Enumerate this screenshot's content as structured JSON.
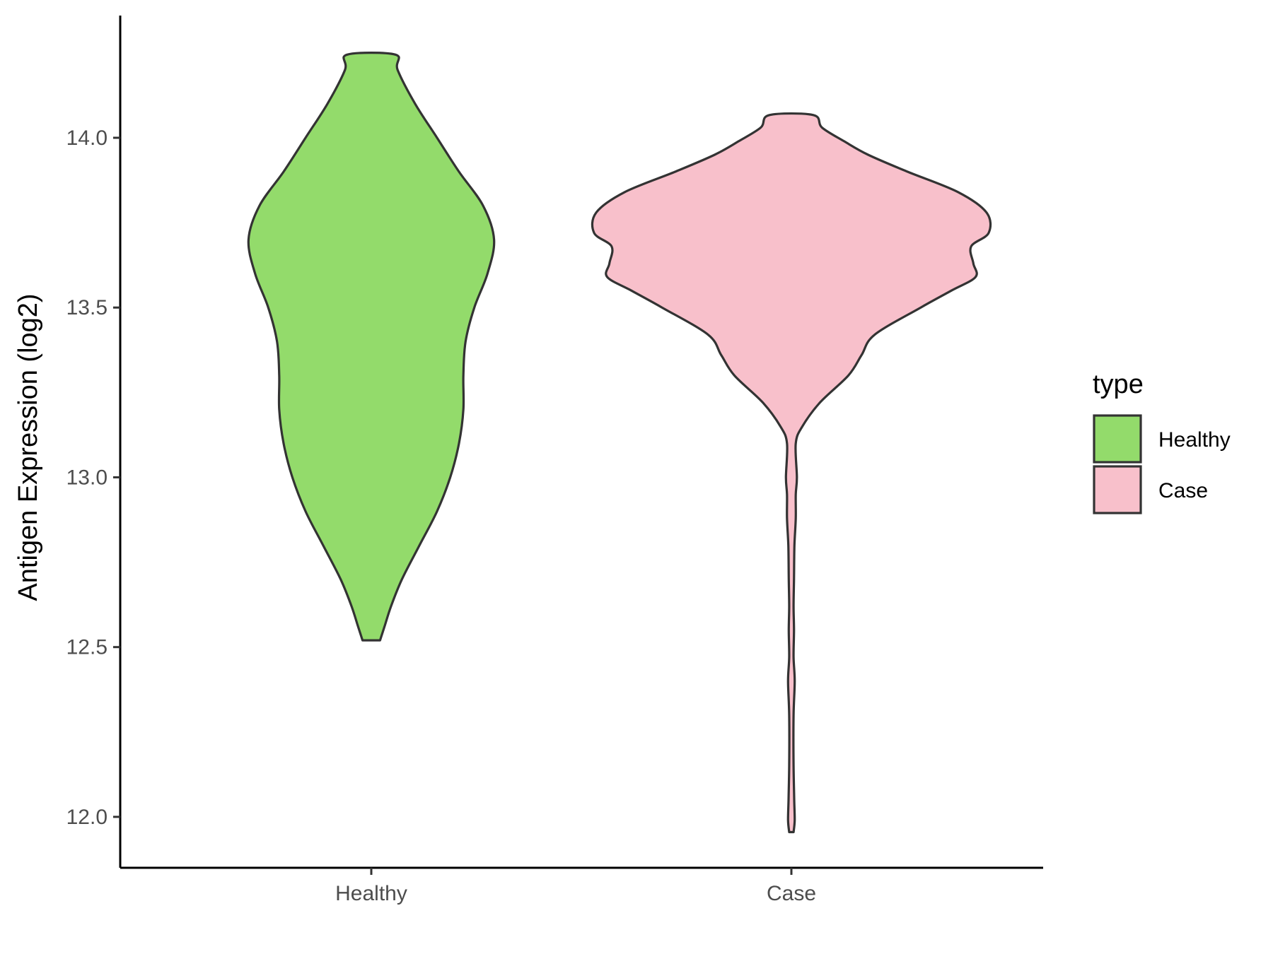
{
  "chart_data": {
    "type": "violin",
    "ylabel": "Antigen Expression (log2)",
    "xlabel": "",
    "ylim": [
      11.85,
      14.36
    ],
    "y_ticks": [
      12.0,
      12.5,
      13.0,
      13.5,
      14.0
    ],
    "y_tick_labels": [
      "12.0",
      "12.5",
      "13.0",
      "13.5",
      "14.0"
    ],
    "categories": [
      "Healthy",
      "Case"
    ],
    "grid": false,
    "legend": {
      "title": "type",
      "position": "right",
      "entries": [
        "Healthy",
        "Case"
      ]
    },
    "colors": {
      "Healthy": "#93db6b",
      "Case": "#f8c0cb",
      "outline": "#333333",
      "axis": "#000000"
    },
    "series": [
      {
        "name": "Healthy",
        "profile": [
          [
            12.52,
            0.04
          ],
          [
            12.56,
            0.06
          ],
          [
            12.62,
            0.09
          ],
          [
            12.7,
            0.14
          ],
          [
            12.8,
            0.22
          ],
          [
            12.9,
            0.3
          ],
          [
            13.0,
            0.36
          ],
          [
            13.1,
            0.4
          ],
          [
            13.2,
            0.42
          ],
          [
            13.3,
            0.42
          ],
          [
            13.4,
            0.43
          ],
          [
            13.5,
            0.47
          ],
          [
            13.6,
            0.53
          ],
          [
            13.7,
            0.56
          ],
          [
            13.8,
            0.51
          ],
          [
            13.9,
            0.4
          ],
          [
            14.0,
            0.3
          ],
          [
            14.1,
            0.2
          ],
          [
            14.2,
            0.12
          ],
          [
            14.245,
            0.11
          ]
        ]
      },
      {
        "name": "Case",
        "profile": [
          [
            11.955,
            0.01
          ],
          [
            11.99,
            0.015
          ],
          [
            12.05,
            0.013
          ],
          [
            12.15,
            0.01
          ],
          [
            12.3,
            0.01
          ],
          [
            12.4,
            0.015
          ],
          [
            12.47,
            0.01
          ],
          [
            12.55,
            0.012
          ],
          [
            12.62,
            0.01
          ],
          [
            12.7,
            0.012
          ],
          [
            12.8,
            0.014
          ],
          [
            12.88,
            0.02
          ],
          [
            12.95,
            0.02
          ],
          [
            13.0,
            0.025
          ],
          [
            13.1,
            0.02
          ],
          [
            13.15,
            0.05
          ],
          [
            13.22,
            0.13
          ],
          [
            13.3,
            0.26
          ],
          [
            13.36,
            0.32
          ],
          [
            13.42,
            0.38
          ],
          [
            13.5,
            0.59
          ],
          [
            13.55,
            0.73
          ],
          [
            13.59,
            0.84
          ],
          [
            13.63,
            0.83
          ],
          [
            13.68,
            0.82
          ],
          [
            13.72,
            0.9
          ],
          [
            13.78,
            0.89
          ],
          [
            13.84,
            0.76
          ],
          [
            13.9,
            0.53
          ],
          [
            13.95,
            0.35
          ],
          [
            13.99,
            0.24
          ],
          [
            14.03,
            0.14
          ],
          [
            14.067,
            0.1
          ]
        ]
      }
    ]
  }
}
